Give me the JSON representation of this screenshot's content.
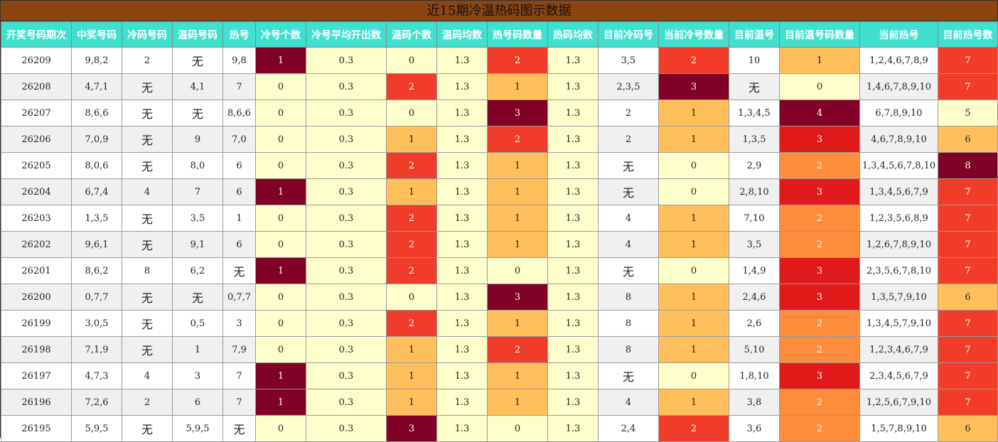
{
  "title": "近15期冷温热码图示数据",
  "headers": [
    "开奖号码期次",
    "中奖号码",
    "冷码号码",
    "温码号码",
    "热号",
    "冷号个数",
    "冷号平均开出数",
    "温码个数",
    "温码均数",
    "热号码数量",
    "热码均数",
    "目前冷码号",
    "当前冷号数量",
    "目前温号",
    "目前温号码数量",
    "当前热号",
    "目前热号数"
  ],
  "colors": {
    "lt": "#FFFFCC",
    "mid": "#FFC05C",
    "org": "#FF8C3A",
    "red": "#F03C28",
    "crim": "#E01A1A",
    "dark": "#800026",
    "header": "#40E0D0",
    "title_bar": "#8B4513"
  },
  "rows": [
    {
      "cells": [
        "26209",
        "9,8,2",
        "2",
        "无",
        "9,8",
        "1",
        "0.3",
        "0",
        "1.3",
        "2",
        "1.3",
        "3,5",
        "2",
        "10",
        "1",
        "1,2,4,6,7,8,9",
        "7"
      ],
      "fills": {
        "5": "dark",
        "6": "lt",
        "7": "lt",
        "8": "lt",
        "9": "red",
        "10": "lt",
        "12": "red",
        "14": "mid",
        "16": "red"
      }
    },
    {
      "cells": [
        "26208",
        "4,7,1",
        "无",
        "4,1",
        "7",
        "0",
        "0.3",
        "2",
        "1.3",
        "1",
        "1.3",
        "2,3,5",
        "3",
        "无",
        "0",
        "1,4,6,7,8,9,10",
        "7"
      ],
      "fills": {
        "5": "lt",
        "6": "lt",
        "7": "red",
        "8": "lt",
        "9": "mid",
        "10": "lt",
        "12": "dark",
        "14": "lt",
        "16": "red"
      }
    },
    {
      "cells": [
        "26207",
        "8,6,6",
        "无",
        "无",
        "8,6,6",
        "0",
        "0.3",
        "0",
        "1.3",
        "3",
        "1.3",
        "2",
        "1",
        "1,3,4,5",
        "4",
        "6,7,8,9,10",
        "5"
      ],
      "fills": {
        "5": "lt",
        "6": "lt",
        "7": "lt",
        "8": "lt",
        "9": "dark",
        "10": "lt",
        "12": "mid",
        "14": "dark",
        "16": "lt"
      }
    },
    {
      "cells": [
        "26206",
        "7,0,9",
        "无",
        "9",
        "7,0",
        "0",
        "0.3",
        "1",
        "1.3",
        "2",
        "1.3",
        "2",
        "1",
        "1,3,5",
        "3",
        "4,6,7,8,9,10",
        "6"
      ],
      "fills": {
        "5": "lt",
        "6": "lt",
        "7": "mid",
        "8": "lt",
        "9": "red",
        "10": "lt",
        "12": "mid",
        "14": "crim",
        "16": "mid"
      }
    },
    {
      "cells": [
        "26205",
        "8,0,6",
        "无",
        "8,0",
        "6",
        "0",
        "0.3",
        "2",
        "1.3",
        "1",
        "1.3",
        "无",
        "0",
        "2,9",
        "2",
        "1,3,4,5,6,7,8,10",
        "8"
      ],
      "fills": {
        "5": "lt",
        "6": "lt",
        "7": "red",
        "8": "lt",
        "9": "mid",
        "10": "lt",
        "12": "lt",
        "14": "org",
        "16": "dark"
      }
    },
    {
      "cells": [
        "26204",
        "6,7,4",
        "4",
        "7",
        "6",
        "1",
        "0.3",
        "1",
        "1.3",
        "1",
        "1.3",
        "无",
        "0",
        "2,8,10",
        "3",
        "1,3,4,5,6,7,9",
        "7"
      ],
      "fills": {
        "5": "dark",
        "6": "lt",
        "7": "mid",
        "8": "lt",
        "9": "mid",
        "10": "lt",
        "12": "lt",
        "14": "crim",
        "16": "red"
      }
    },
    {
      "cells": [
        "26203",
        "1,3,5",
        "无",
        "3,5",
        "1",
        "0",
        "0.3",
        "2",
        "1.3",
        "1",
        "1.3",
        "4",
        "1",
        "7,10",
        "2",
        "1,2,3,5,6,8,9",
        "7"
      ],
      "fills": {
        "5": "lt",
        "6": "lt",
        "7": "red",
        "8": "lt",
        "9": "mid",
        "10": "lt",
        "12": "mid",
        "14": "org",
        "16": "red"
      }
    },
    {
      "cells": [
        "26202",
        "9,6,1",
        "无",
        "9,1",
        "6",
        "0",
        "0.3",
        "2",
        "1.3",
        "1",
        "1.3",
        "4",
        "1",
        "3,5",
        "2",
        "1,2,6,7,8,9,10",
        "7"
      ],
      "fills": {
        "5": "lt",
        "6": "lt",
        "7": "red",
        "8": "lt",
        "9": "mid",
        "10": "lt",
        "12": "mid",
        "14": "org",
        "16": "red"
      }
    },
    {
      "cells": [
        "26201",
        "8,6,2",
        "8",
        "6,2",
        "无",
        "1",
        "0.3",
        "2",
        "1.3",
        "0",
        "1.3",
        "无",
        "0",
        "1,4,9",
        "3",
        "2,3,5,6,7,8,10",
        "7"
      ],
      "fills": {
        "5": "dark",
        "6": "lt",
        "7": "red",
        "8": "lt",
        "9": "lt",
        "10": "lt",
        "12": "lt",
        "14": "crim",
        "16": "red"
      }
    },
    {
      "cells": [
        "26200",
        "0,7,7",
        "无",
        "无",
        "0,7,7",
        "0",
        "0.3",
        "0",
        "1.3",
        "3",
        "1.3",
        "8",
        "1",
        "2,4,6",
        "3",
        "1,3,5,7,9,10",
        "6"
      ],
      "fills": {
        "5": "lt",
        "6": "lt",
        "7": "lt",
        "8": "lt",
        "9": "dark",
        "10": "lt",
        "12": "mid",
        "14": "crim",
        "16": "mid"
      }
    },
    {
      "cells": [
        "26199",
        "3,0,5",
        "无",
        "0,5",
        "3",
        "0",
        "0.3",
        "2",
        "1.3",
        "1",
        "1.3",
        "8",
        "1",
        "2,6",
        "2",
        "1,3,4,5,7,9,10",
        "7"
      ],
      "fills": {
        "5": "lt",
        "6": "lt",
        "7": "red",
        "8": "lt",
        "9": "mid",
        "10": "lt",
        "12": "mid",
        "14": "org",
        "16": "red"
      }
    },
    {
      "cells": [
        "26198",
        "7,1,9",
        "无",
        "1",
        "7,9",
        "0",
        "0.3",
        "1",
        "1.3",
        "2",
        "1.3",
        "8",
        "1",
        "5,10",
        "2",
        "1,2,3,4,6,7,9",
        "7"
      ],
      "fills": {
        "5": "lt",
        "6": "lt",
        "7": "mid",
        "8": "lt",
        "9": "red",
        "10": "lt",
        "12": "mid",
        "14": "org",
        "16": "red"
      }
    },
    {
      "cells": [
        "26197",
        "4,7,3",
        "4",
        "3",
        "7",
        "1",
        "0.3",
        "1",
        "1.3",
        "1",
        "1.3",
        "无",
        "0",
        "1,8,10",
        "3",
        "2,3,4,5,6,7,9",
        "7"
      ],
      "fills": {
        "5": "dark",
        "6": "lt",
        "7": "mid",
        "8": "lt",
        "9": "mid",
        "10": "lt",
        "12": "lt",
        "14": "crim",
        "16": "red"
      }
    },
    {
      "cells": [
        "26196",
        "7,2,6",
        "2",
        "6",
        "7",
        "1",
        "0.3",
        "1",
        "1.3",
        "1",
        "1.3",
        "4",
        "1",
        "3,8",
        "2",
        "1,2,5,6,7,9,10",
        "7"
      ],
      "fills": {
        "5": "dark",
        "6": "lt",
        "7": "mid",
        "8": "lt",
        "9": "mid",
        "10": "lt",
        "12": "mid",
        "14": "org",
        "16": "red"
      }
    },
    {
      "cells": [
        "26195",
        "5,9,5",
        "无",
        "5,9,5",
        "无",
        "0",
        "0.3",
        "3",
        "1.3",
        "0",
        "1.3",
        "2,4",
        "2",
        "3,6",
        "2",
        "1,5,7,8,9,10",
        "6"
      ],
      "fills": {
        "5": "lt",
        "6": "lt",
        "7": "dark",
        "8": "lt",
        "9": "lt",
        "10": "lt",
        "12": "red",
        "14": "org",
        "16": "mid"
      }
    }
  ]
}
